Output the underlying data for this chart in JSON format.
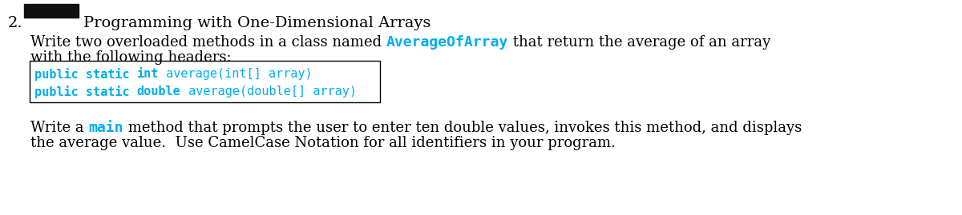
{
  "bg_color": "#ffffff",
  "cyan_color": "#00AEEF",
  "black_color": "#000000",
  "redacted_color": "#111111",
  "title_text": "Programming with One-Dimensional Arrays",
  "para1_line1_a": "Write two overloaded methods in a class named ",
  "para1_class": "AverageOfArray",
  "para1_line1_b": " that return the average of an array",
  "para1_line2": "with the following headers:",
  "code_line1_kw": "public static ",
  "code_line1_type": "int",
  "code_line1_rest": " average(int[] array)",
  "code_line2_kw": "public static ",
  "code_line2_type": "double",
  "code_line2_rest": " average(double[] array)",
  "para2_pre": "Write a ",
  "para2_main": "main",
  "para2_post": " method that prompts the user to enter ten double values, invokes this method, and displays",
  "para2_line2": "the average value.  Use CamelCase Notation for all identifiers in your program.",
  "font_size_title": 14,
  "font_size_body": 13,
  "font_size_code": 11
}
